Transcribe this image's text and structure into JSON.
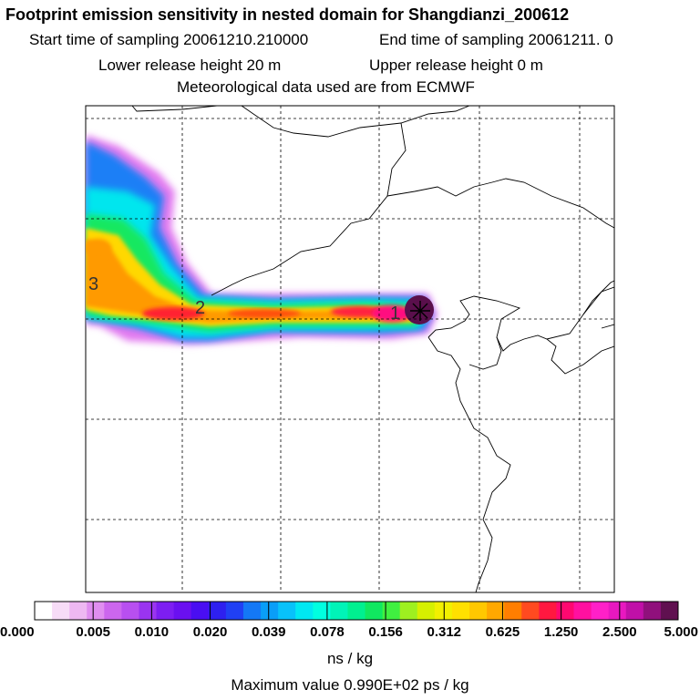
{
  "header": {
    "title": "Footprint emission sensitivity in nested domain for Shangdianzi_200612",
    "line2_start": "Start time of sampling 20061210.210000",
    "line2_end": "End time of sampling 20061211.     0",
    "line3_lower": "Lower release height   20 m",
    "line3_upper": "Upper release height    0 m",
    "line4": "Meteorological data used are from ECMWF"
  },
  "map": {
    "path_labels": [
      "3",
      "2",
      "1"
    ],
    "receptor_marker": "star-icon"
  },
  "colorbar": {
    "ticks": [
      "0.000",
      "0.005",
      "0.010",
      "0.020",
      "0.039",
      "0.078",
      "0.156",
      "0.312",
      "0.625",
      "1.250",
      "2.500",
      "5.000"
    ],
    "colors": [
      "#ffffff",
      "#f7dcf7",
      "#eeb8f2",
      "#e08ef0",
      "#cc66ee",
      "#b84ff0",
      "#9a34f0",
      "#7d1ef2",
      "#6a10f0",
      "#4a0ef2",
      "#2e20f0",
      "#2040f4",
      "#1478f6",
      "#0a9ef8",
      "#08c2fa",
      "#00e8f2",
      "#00ffe0",
      "#00f4b8",
      "#00f090",
      "#10e860",
      "#40f040",
      "#9ef020",
      "#d6f000",
      "#f2f000",
      "#ffe000",
      "#ffc800",
      "#ffa800",
      "#ff7e00",
      "#ff4a20",
      "#ff1840",
      "#ff0870",
      "#ff10a0",
      "#ff20c8",
      "#e818c0",
      "#c010a8",
      "#90107c",
      "#601050"
    ],
    "unit": "ns / kg",
    "max_label": "Maximum value  0.990E+02 ps / kg"
  }
}
